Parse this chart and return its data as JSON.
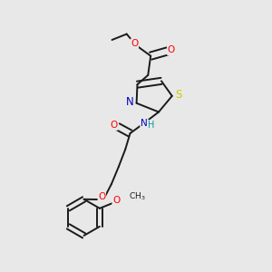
{
  "bg_color": "#e8e8e8",
  "bond_color": "#1a1a1a",
  "bond_lw": 1.4,
  "atom_colors": {
    "O": "#ff0000",
    "N": "#0000cc",
    "S": "#cccc00",
    "H": "#009999",
    "C": "#1a1a1a"
  },
  "font_size": 7.5,
  "figsize": [
    3.0,
    3.0
  ],
  "dpi": 100
}
